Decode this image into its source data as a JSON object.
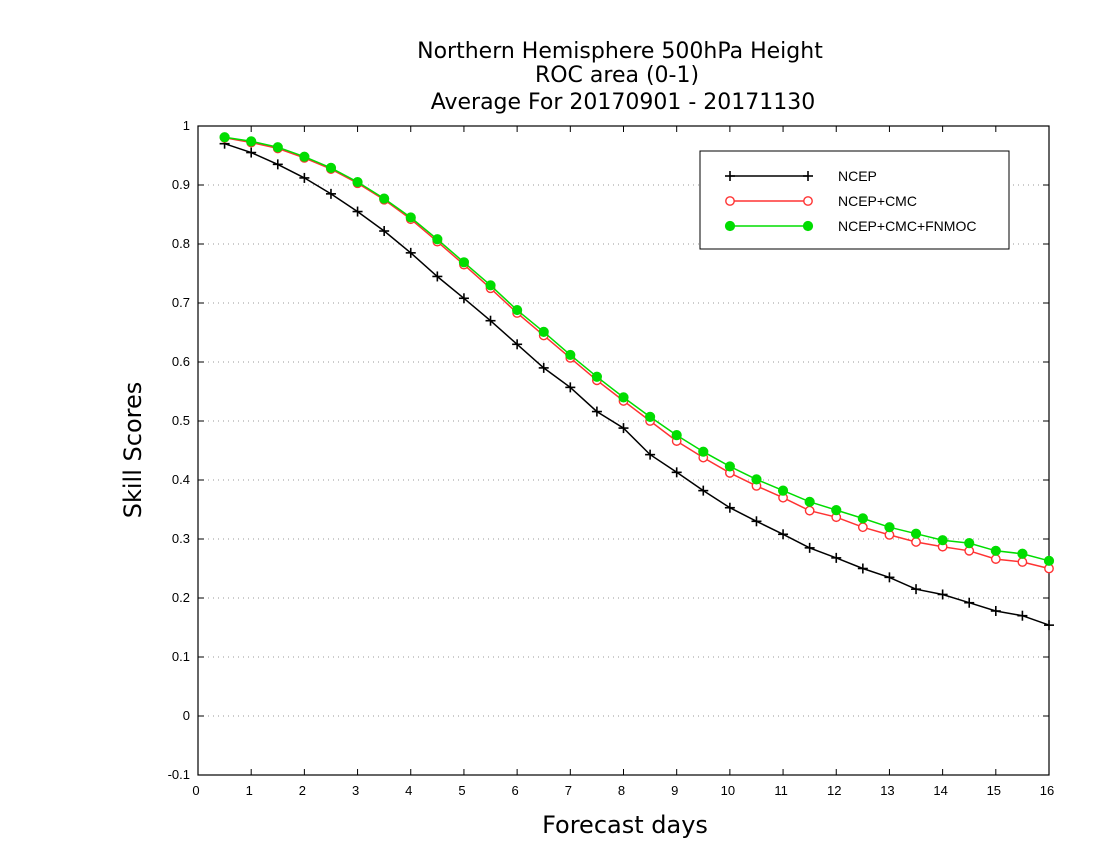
{
  "chart_data": {
    "type": "line",
    "title_lines": [
      "Northern Hemisphere 500hPa Height",
      "ROC area (0-1)",
      "Average For 20170901 - 20171130"
    ],
    "xlabel": "Forecast days",
    "ylabel": "Skill Scores",
    "xlim": [
      0,
      16
    ],
    "ylim": [
      -0.1,
      1
    ],
    "x_ticks": [
      0,
      1,
      2,
      3,
      4,
      5,
      6,
      7,
      8,
      9,
      10,
      11,
      12,
      13,
      14,
      15,
      16
    ],
    "y_ticks": [
      -0.1,
      0,
      0.1,
      0.2,
      0.3,
      0.4,
      0.5,
      0.6,
      0.7,
      0.8,
      0.9,
      1
    ],
    "y_tick_labels": [
      "-0.1",
      "0",
      "0.1",
      "0.2",
      "0.3",
      "0.4",
      "0.5",
      "0.6",
      "0.7",
      "0.8",
      "0.9",
      "1"
    ],
    "grid": "horizontal dotted",
    "legend_position": "top-right",
    "x": [
      0.5,
      1,
      1.5,
      2,
      2.5,
      3,
      3.5,
      4,
      4.5,
      5,
      5.5,
      6,
      6.5,
      7,
      7.5,
      8,
      8.5,
      9,
      9.5,
      10,
      10.5,
      11,
      11.5,
      12,
      12.5,
      13,
      13.5,
      14,
      14.5,
      15,
      15.5,
      16
    ],
    "series": [
      {
        "name": "NCEP",
        "color": "#000000",
        "marker": "plus",
        "values": [
          0.97,
          0.955,
          0.935,
          0.912,
          0.885,
          0.855,
          0.822,
          0.785,
          0.745,
          0.708,
          0.67,
          0.63,
          0.59,
          0.557,
          0.516,
          0.488,
          0.443,
          0.413,
          0.382,
          0.353,
          0.33,
          0.308,
          0.285,
          0.268,
          0.25,
          0.235,
          0.215,
          0.206,
          0.192,
          0.178,
          0.17,
          0.154
        ]
      },
      {
        "name": "NCEP+CMC",
        "color": "#ff3333",
        "marker": "open-circle",
        "values": [
          0.98,
          0.972,
          0.962,
          0.946,
          0.927,
          0.903,
          0.875,
          0.842,
          0.804,
          0.765,
          0.725,
          0.683,
          0.645,
          0.607,
          0.569,
          0.534,
          0.5,
          0.466,
          0.438,
          0.412,
          0.39,
          0.37,
          0.348,
          0.337,
          0.32,
          0.307,
          0.295,
          0.287,
          0.28,
          0.266,
          0.261,
          0.25
        ]
      },
      {
        "name": "NCEP+CMC+FNMOC",
        "color": "#00dd00",
        "marker": "filled-circle",
        "values": [
          0.981,
          0.974,
          0.964,
          0.948,
          0.929,
          0.905,
          0.877,
          0.845,
          0.808,
          0.769,
          0.73,
          0.688,
          0.651,
          0.612,
          0.575,
          0.54,
          0.507,
          0.476,
          0.448,
          0.423,
          0.401,
          0.382,
          0.363,
          0.349,
          0.335,
          0.32,
          0.309,
          0.298,
          0.293,
          0.28,
          0.275,
          0.263
        ]
      }
    ]
  }
}
